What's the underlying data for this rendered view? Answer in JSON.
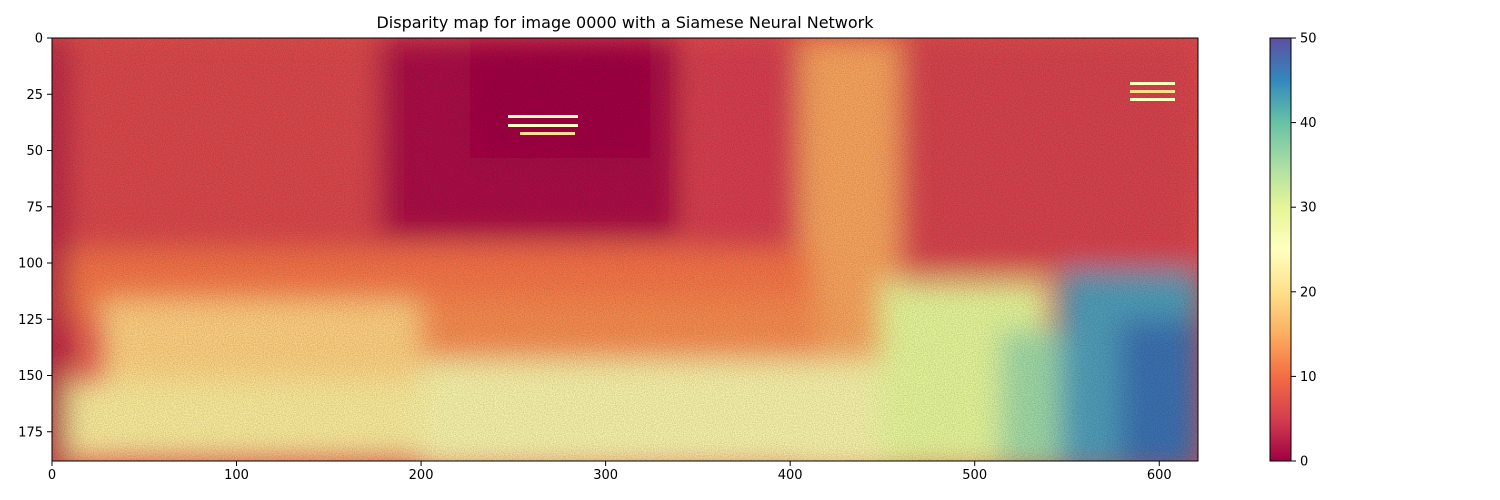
{
  "chart_data": {
    "type": "heatmap",
    "title": "Disparity map for image 0000 with a Siamese Neural Network",
    "xlabel": "",
    "ylabel": "",
    "xlim": [
      0,
      621
    ],
    "ylim": [
      188,
      0
    ],
    "x_ticks": [
      0,
      100,
      200,
      300,
      400,
      500,
      600
    ],
    "y_ticks": [
      0,
      25,
      50,
      75,
      100,
      125,
      150,
      175
    ],
    "colormap": "Spectral",
    "colorbar": {
      "range": [
        0,
        50
      ],
      "ticks": [
        0,
        10,
        20,
        30,
        40,
        50
      ]
    },
    "colormap_stops": [
      "#9e0142",
      "#d53e4f",
      "#f46d43",
      "#fdae61",
      "#fee08b",
      "#ffffbf",
      "#e6f598",
      "#abdda4",
      "#66c2a5",
      "#3288bd",
      "#5e4fa2"
    ],
    "grid": false,
    "image_shape": [
      188,
      621
    ],
    "regions": [
      {
        "region": "left border strip",
        "disparity_approx": 2
      },
      {
        "region": "upper left wall",
        "disparity_approx": 8
      },
      {
        "region": "upper center dark area",
        "disparity_approx": 2
      },
      {
        "region": "center right pillar",
        "disparity_approx": 18
      },
      {
        "region": "upper right wall",
        "disparity_approx": 7
      },
      {
        "region": "lower left floor",
        "disparity_approx": 22
      },
      {
        "region": "bottom floor",
        "disparity_approx": 28
      },
      {
        "region": "right lower area",
        "disparity_approx": 45
      }
    ]
  }
}
